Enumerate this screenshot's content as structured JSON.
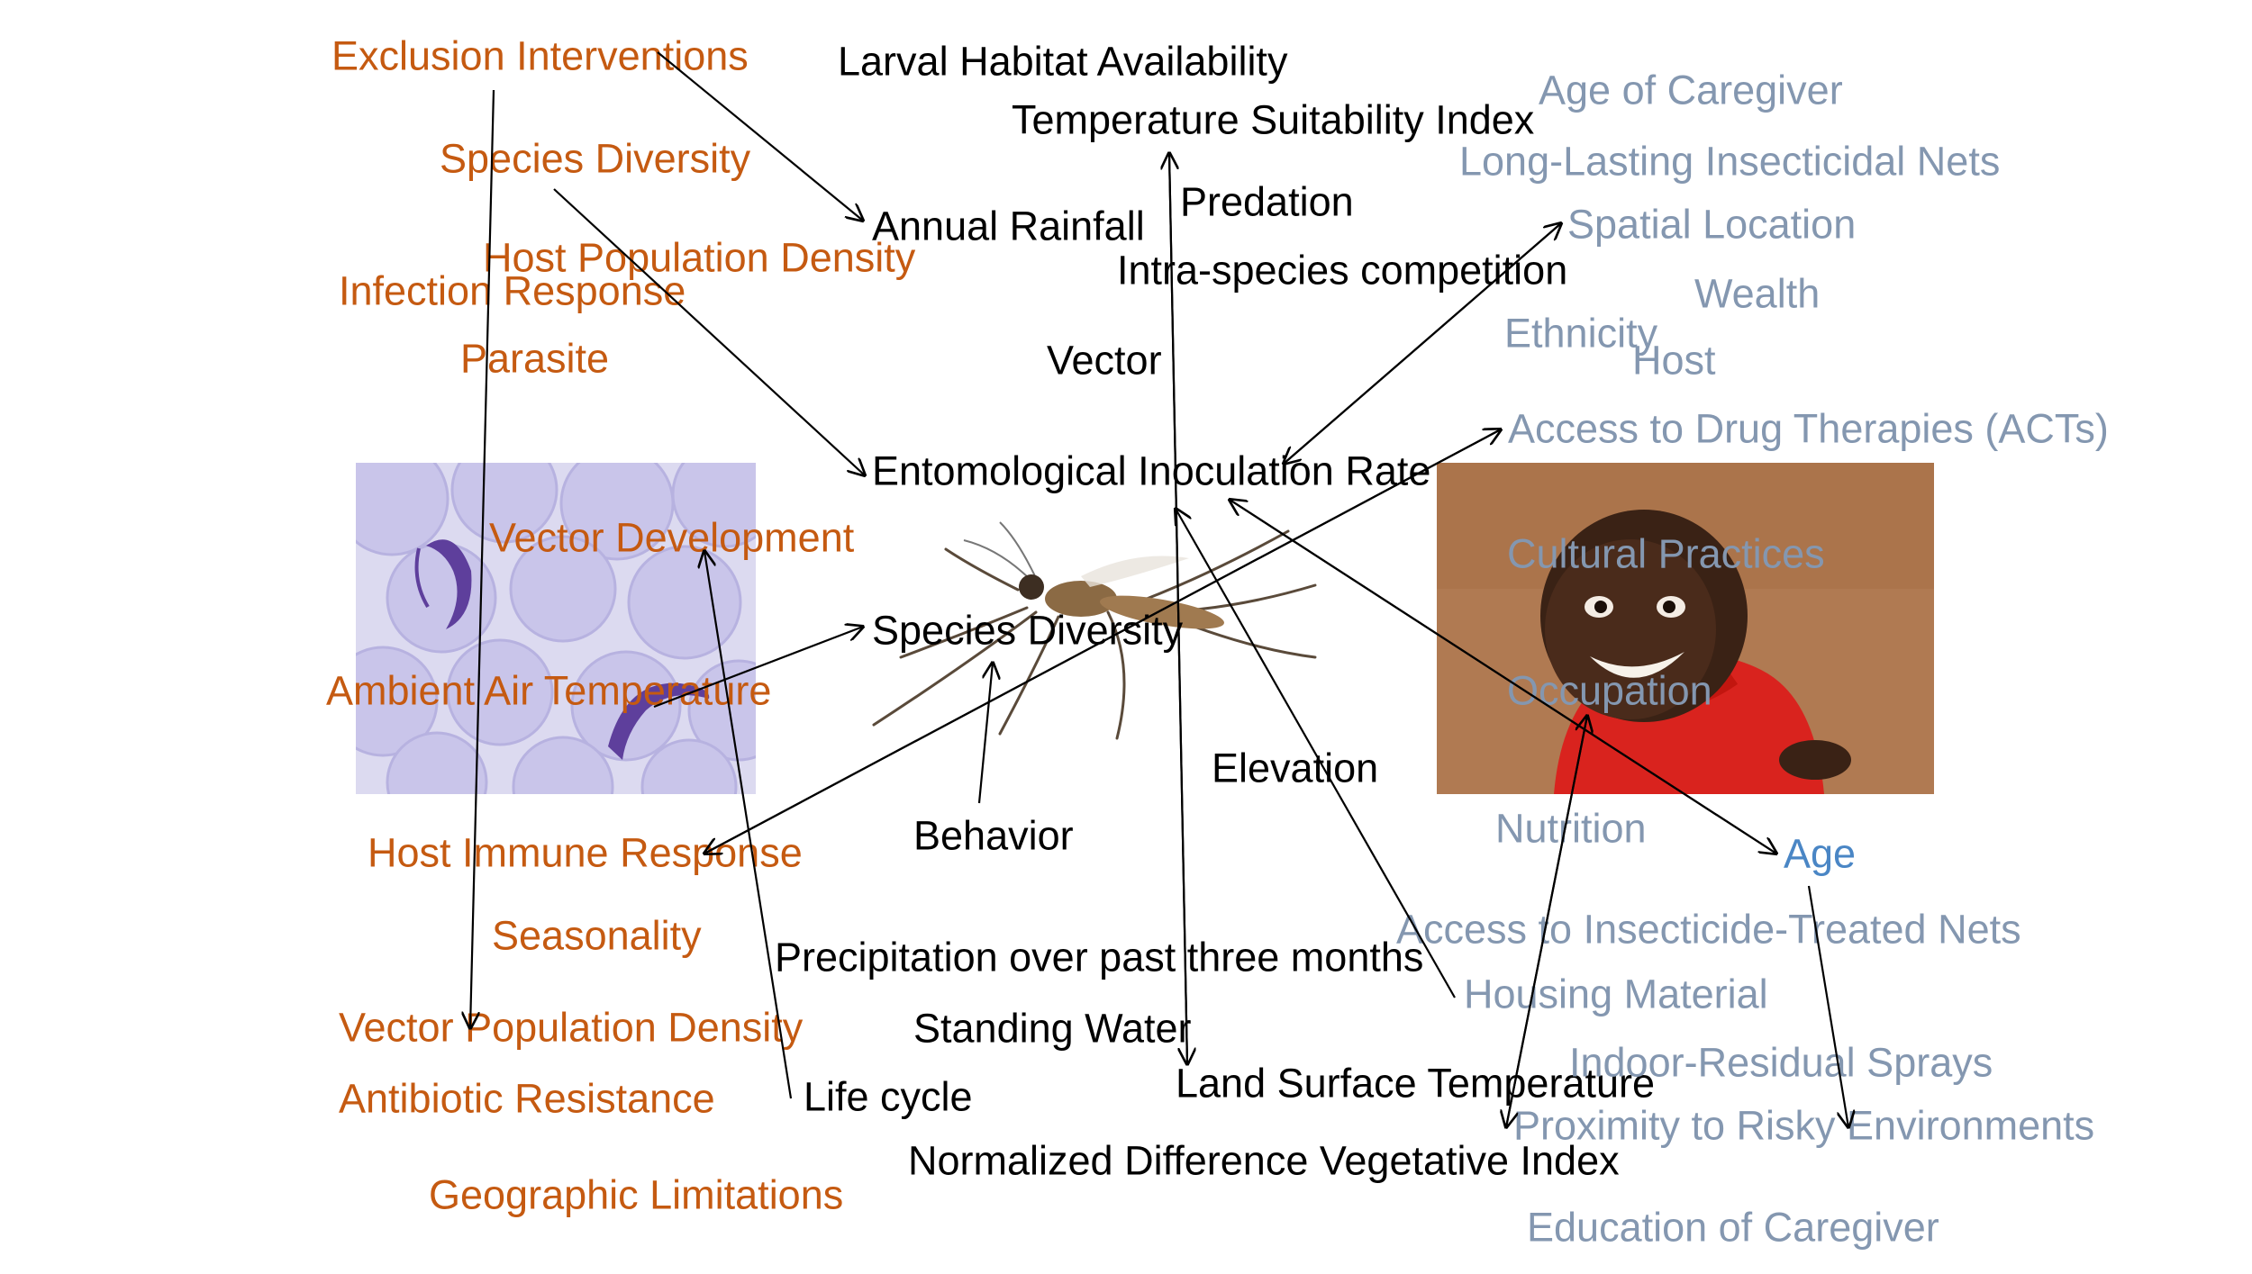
{
  "colors": {
    "parasite_group": "#c55a11",
    "vector_group": "#000000",
    "host_group": "#8497b0",
    "highlight": "#4a86c5"
  },
  "parasite": {
    "exclusion_interventions": "Exclusion Interventions",
    "species_diversity": "Species Diversity",
    "host_population_density": "Host Population Density",
    "infection_response": "Infection Response",
    "parasite": "Parasite",
    "vector_development": "Vector Development",
    "ambient_air_temperature": "Ambient Air Temperature",
    "host_immune_response": "Host Immune Response",
    "seasonality": "Seasonality",
    "vector_population_density": "Vector Population Density",
    "antibiotic_resistance": "Antibiotic Resistance",
    "geographic_limitations": "Geographic Limitations"
  },
  "vector": {
    "larval_habitat_availability": "Larval Habitat Availability",
    "temperature_suitability_index": "Temperature Suitability Index",
    "predation": "Predation",
    "annual_rainfall": "Annual Rainfall",
    "intra_species_competition": "Intra-species competition",
    "vector": "Vector",
    "entomological_inoculation_rate": "Entomological Inoculation Rate",
    "species_diversity": "Species Diversity",
    "elevation": "Elevation",
    "behavior": "Behavior",
    "precipitation": "Precipitation over past three months",
    "standing_water": "Standing Water",
    "life_cycle": "Life cycle",
    "land_surface_temperature": "Land Surface Temperature",
    "ndvi": "Normalized Difference Vegetative Index"
  },
  "host": {
    "age_of_caregiver": "Age of Caregiver",
    "long_lasting_nets": "Long-Lasting Insecticidal Nets",
    "spatial_location": "Spatial Location",
    "wealth": "Wealth",
    "ethnicity": "Ethnicity",
    "host": "Host",
    "access_to_drug_therapies": "Access to Drug Therapies (ACTs)",
    "cultural_practices": "Cultural Practices",
    "occupation": "Occupation",
    "nutrition": "Nutrition",
    "age": "Age",
    "access_to_itn": "Access to Insecticide-Treated Nets",
    "housing_material": "Housing Material",
    "indoor_residual_sprays": "Indoor-Residual Sprays",
    "proximity_to_risky_env": "Proximity to Risky Environments",
    "education_of_caregiver": "Education of Caregiver"
  },
  "images": {
    "blood_smear": "blood-smear-photo",
    "mosquito": "mosquito-photo",
    "child": "child-photo"
  }
}
